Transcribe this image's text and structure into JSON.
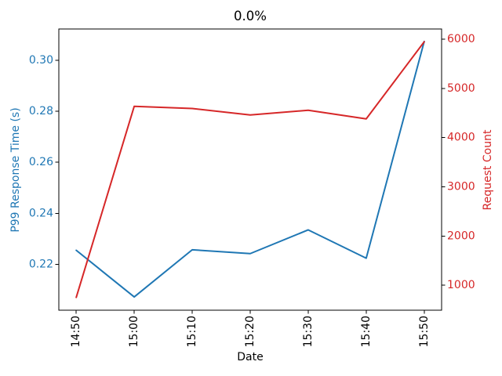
{
  "chart_data": {
    "type": "line",
    "title": "0.0%",
    "xlabel": "Date",
    "grid": false,
    "legend": false,
    "categories": [
      "14:50",
      "15:00",
      "15:10",
      "15:20",
      "15:30",
      "15:40",
      "15:50"
    ],
    "series": [
      {
        "name": "P99 Response Time (s)",
        "axis": "left",
        "color": "#1f77b4",
        "values": [
          0.2255,
          0.2072,
          0.2257,
          0.2242,
          0.2335,
          0.2224,
          0.3074
        ]
      },
      {
        "name": "Request Count",
        "axis": "right",
        "color": "#d62728",
        "values": [
          755,
          4635,
          4590,
          4460,
          4555,
          4380,
          5945
        ]
      }
    ],
    "axes": {
      "x": {
        "label": "Date",
        "color": "#000000",
        "range": [
          -0.3,
          6.3
        ],
        "tick_rotation": 90,
        "tick_labels": [
          "14:50",
          "15:00",
          "15:10",
          "15:20",
          "15:30",
          "15:40",
          "15:50"
        ]
      },
      "left": {
        "label": "P99 Response Time (s)",
        "color": "#1f77b4",
        "range": [
          0.202,
          0.3123
        ],
        "ticks": [
          {
            "value": 0.22,
            "label": "0.22"
          },
          {
            "value": 0.24,
            "label": "0.24"
          },
          {
            "value": 0.26,
            "label": "0.26"
          },
          {
            "value": 0.28,
            "label": "0.28"
          },
          {
            "value": 0.3,
            "label": "0.30"
          }
        ]
      },
      "right": {
        "label": "Request Count",
        "color": "#d62728",
        "range": [
          495,
          6205
        ],
        "ticks": [
          {
            "value": 1000,
            "label": "1000"
          },
          {
            "value": 2000,
            "label": "2000"
          },
          {
            "value": 3000,
            "label": "3000"
          },
          {
            "value": 4000,
            "label": "4000"
          },
          {
            "value": 5000,
            "label": "5000"
          },
          {
            "value": 6000,
            "label": "6000"
          }
        ]
      }
    },
    "spine_color": "#000000"
  }
}
